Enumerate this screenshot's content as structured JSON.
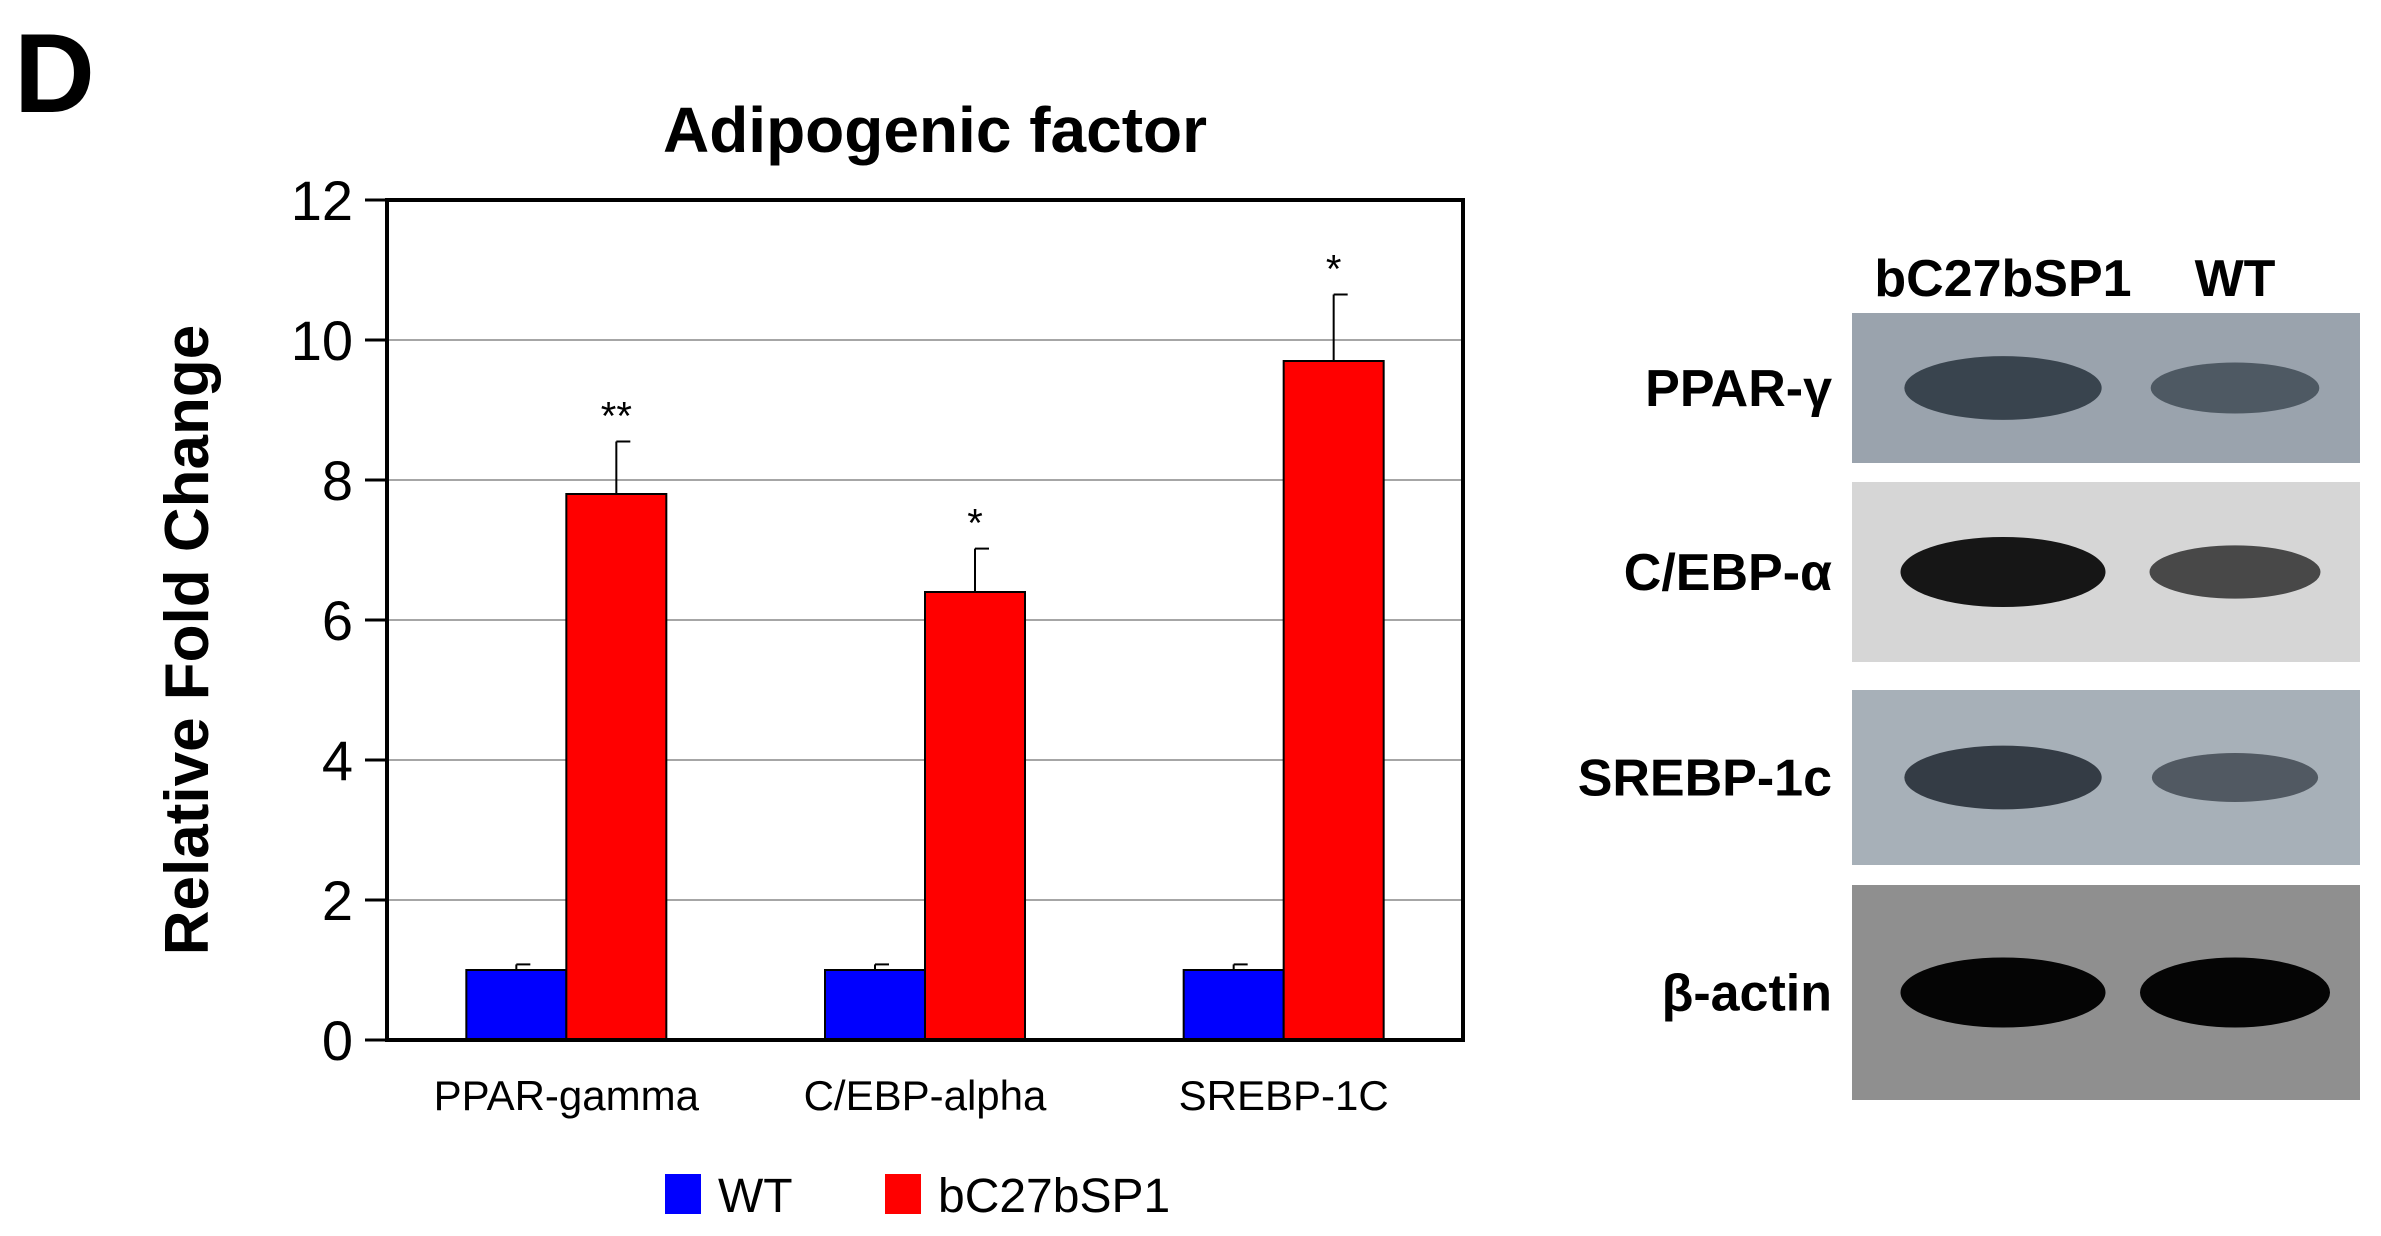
{
  "panel_label": "D",
  "chart_data": {
    "type": "bar",
    "title": "Adipogenic factor",
    "xlabel": "",
    "ylabel": "Relative Fold Change",
    "ylim": [
      0,
      12
    ],
    "yticks": [
      0,
      2,
      4,
      6,
      8,
      10,
      12
    ],
    "grid": true,
    "categories": [
      "PPAR-gamma",
      "C/EBP-alpha",
      "SREBP-1C"
    ],
    "series": [
      {
        "name": "WT",
        "color": "#0000ff",
        "values": [
          1.0,
          1.0,
          1.0
        ],
        "errors": [
          0.08,
          0.08,
          0.08
        ]
      },
      {
        "name": "bC27bSP1",
        "color": "#ff0000",
        "values": [
          7.8,
          6.4,
          9.7
        ],
        "errors": [
          0.75,
          0.62,
          0.95
        ]
      }
    ],
    "significance": [
      "**",
      "*",
      "*"
    ],
    "legend": "bottom-center"
  },
  "blot": {
    "lane_labels": [
      "bC27bSP1",
      "WT"
    ],
    "rows": [
      {
        "label": "PPAR-γ",
        "background": "#9aa3ad",
        "band_color": "#2f3a44",
        "intensity": [
          0.85,
          0.55
        ]
      },
      {
        "label": "C/EBP-α",
        "background": "#d6d6d6",
        "band_color": "#161616",
        "intensity": [
          1.0,
          0.6
        ]
      },
      {
        "label": "SREBP-1c",
        "background": "#a7b0b8",
        "band_color": "#283038",
        "intensity": [
          0.85,
          0.5
        ]
      },
      {
        "label": "β-actin",
        "background": "#8f8f8f",
        "band_color": "#050505",
        "intensity": [
          1.0,
          1.0
        ]
      }
    ]
  }
}
